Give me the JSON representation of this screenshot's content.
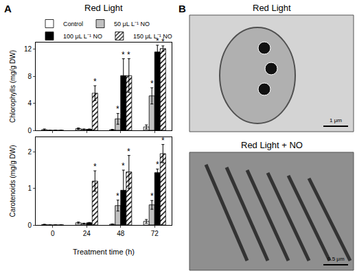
{
  "figure": {
    "panel_labels": [
      "A",
      "B"
    ],
    "panel_a_title": "Red Light"
  },
  "chart_data": [
    {
      "type": "bar",
      "y_label": "Chlorophylls (mg/g DW)",
      "categories": [
        "0",
        "24",
        "48",
        "72"
      ],
      "ylim": [
        0,
        13
      ],
      "yticks": [
        0,
        4,
        8,
        12
      ],
      "grid": false,
      "tick_labels": "y",
      "legend": "top",
      "series": [
        {
          "name": "Control",
          "color": "#ffffff",
          "values": [
            0.1,
            0.25,
            0.1,
            0.5
          ],
          "errors": [
            0.1,
            0.1,
            0.05,
            0.3
          ]
        },
        {
          "name": "50 μL L⁻¹ NO",
          "color": "#c0c0c0",
          "values": [
            0,
            0.15,
            1.7,
            5.1
          ],
          "errors": [
            0,
            0.05,
            0.8,
            1.2
          ]
        },
        {
          "name": "100 μL L⁻¹ NO",
          "color": "#000000",
          "values": [
            0,
            0.15,
            8.1,
            11.6
          ],
          "errors": [
            0,
            0.05,
            2.5,
            1.0
          ]
        },
        {
          "name": "150 μL L⁻¹ NO",
          "color": "#ffffff",
          "marker": "hatch",
          "values": [
            0,
            5.5,
            8.1,
            12.1
          ],
          "errors": [
            0,
            1.1,
            2.5,
            0.4
          ]
        }
      ],
      "annotations": [
        {
          "category": "24",
          "series": "150 μL L⁻¹ NO",
          "text": "*"
        },
        {
          "category": "48",
          "series": "50 μL L⁻¹ NO",
          "text": "*"
        },
        {
          "category": "48",
          "series": "100 μL L⁻¹ NO",
          "text": "*"
        },
        {
          "category": "48",
          "series": "150 μL L⁻¹ NO",
          "text": "*"
        },
        {
          "category": "72",
          "series": "50 μL L⁻¹ NO",
          "text": "*"
        },
        {
          "category": "72",
          "series": "100 μL L⁻¹ NO",
          "text": "*"
        },
        {
          "category": "72",
          "series": "150 μL L⁻¹ NO",
          "text": "*"
        }
      ]
    },
    {
      "type": "bar",
      "y_label": "Carotenoids (mg/g DW)",
      "x_label": "Treatment time (h)",
      "categories": [
        "0",
        "24",
        "48",
        "72"
      ],
      "ylim": [
        0,
        2.4
      ],
      "yticks": [
        0,
        1,
        2
      ],
      "grid": false,
      "series": [
        {
          "name": "Control",
          "color": "#ffffff",
          "values": [
            0.01,
            0.06,
            0.02,
            0.1
          ],
          "errors": [
            0.01,
            0.02,
            0.01,
            0.05
          ]
        },
        {
          "name": "50 μL L⁻¹ NO",
          "color": "#c0c0c0",
          "values": [
            0,
            0.04,
            0.53,
            0.55
          ],
          "errors": [
            0,
            0.01,
            0.15,
            0.12
          ]
        },
        {
          "name": "100 μL L⁻¹ NO",
          "color": "#000000",
          "values": [
            0,
            0.06,
            0.95,
            1.43
          ],
          "errors": [
            0,
            0.01,
            0.55,
            0.1
          ]
        },
        {
          "name": "150 μL L⁻¹ NO",
          "color": "#ffffff",
          "marker": "hatch",
          "values": [
            0,
            1.2,
            1.45,
            1.95
          ],
          "errors": [
            0,
            0.28,
            0.45,
            0.25
          ]
        }
      ],
      "annotations": [
        {
          "category": "24",
          "series": "150 μL L⁻¹ NO",
          "text": "*"
        },
        {
          "category": "48",
          "series": "50 μL L⁻¹ NO",
          "text": "*"
        },
        {
          "category": "48",
          "series": "100 μL L⁻¹ NO",
          "text": "*"
        },
        {
          "category": "48",
          "series": "150 μL L⁻¹ NO",
          "text": "*"
        },
        {
          "category": "72",
          "series": "50 μL L⁻¹ NO",
          "text": "*"
        },
        {
          "category": "72",
          "series": "100 μL L⁻¹ NO",
          "text": "*"
        },
        {
          "category": "72",
          "series": "150 μL L⁻¹ NO",
          "text": "*"
        }
      ]
    }
  ],
  "micrographs": [
    {
      "title": "Red Light",
      "scale_bar": "1 μm"
    },
    {
      "title": "Red Light + NO",
      "scale_bar": "0.5 μm"
    }
  ]
}
